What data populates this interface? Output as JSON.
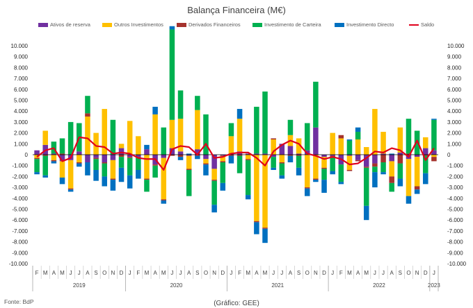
{
  "chart_data": {
    "type": "bar",
    "subtype": "stacked-bar-with-line",
    "title": "Balança Financeira (M€)",
    "source": "Fonte: BdP",
    "credit": "(Gráfico: GEE)",
    "ylim": [
      -10000,
      10000
    ],
    "ytick_step": 1000,
    "ytick_labels": [
      "-10.000",
      "-9.000",
      "-8.000",
      "-7.000",
      "-6.000",
      "-5.000",
      "-4.000",
      "-3.000",
      "-2.000",
      "-1.000",
      "0",
      "1.000",
      "2.000",
      "3.000",
      "4.000",
      "5.000",
      "6.000",
      "7.000",
      "8.000",
      "9.000",
      "10.000"
    ],
    "month_labels": [
      "F",
      "M",
      "A",
      "M",
      "J",
      "J",
      "A",
      "S",
      "O",
      "N",
      "D",
      "J",
      "F",
      "M",
      "A",
      "M",
      "J",
      "J",
      "A",
      "S",
      "O",
      "N",
      "D",
      "J",
      "F",
      "M",
      "A",
      "M",
      "J",
      "J",
      "A",
      "S",
      "O",
      "N",
      "D",
      "J",
      "F",
      "M",
      "A",
      "M",
      "J",
      "J",
      "A",
      "S",
      "O",
      "N",
      "D",
      "J"
    ],
    "years": [
      {
        "label": "2019",
        "months": 11
      },
      {
        "label": "2020",
        "months": 12
      },
      {
        "label": "2021",
        "months": 12
      },
      {
        "label": "2022",
        "months": 12
      },
      {
        "label": "2023",
        "months": 1
      }
    ],
    "series": [
      {
        "name": "Ativos de reserva",
        "color": "#7030A0",
        "type": "bar",
        "values": [
          400,
          900,
          100,
          -600,
          -500,
          300,
          -700,
          -300,
          -700,
          -500,
          600,
          -200,
          -200,
          500,
          -900,
          -300,
          600,
          300,
          -100,
          500,
          -400,
          -1300,
          -100,
          100,
          300,
          100,
          100,
          100,
          -200,
          1000,
          800,
          100,
          400,
          2500,
          -200,
          -100,
          -900,
          -100,
          -500,
          -1100,
          -800,
          100,
          -600,
          200,
          -400,
          -200,
          600,
          400
        ],
        "labels": []
      },
      {
        "name": "Outros Investimentos",
        "color": "#FFC000",
        "type": "bar",
        "values": [
          -300,
          1300,
          -500,
          -1500,
          -2600,
          -700,
          3500,
          2000,
          4200,
          -1700,
          400,
          3100,
          1700,
          -2200,
          3700,
          -3800,
          2600,
          3000,
          -1200,
          3600,
          -400,
          -1000,
          -500,
          1600,
          3000,
          -400,
          -6100,
          -6700,
          1400,
          -700,
          1000,
          1400,
          -3000,
          -2200,
          -1000,
          2000,
          1500,
          -1300,
          1400,
          700,
          4200,
          2000,
          -1400,
          2300,
          -3400,
          -2700,
          1000,
          -200
        ],
        "labels": []
      },
      {
        "name": "Derivados Financeiros",
        "color": "#A5322D",
        "type": "bar",
        "values": [
          -100,
          -100,
          -100,
          100,
          -100,
          -100,
          300,
          -100,
          -100,
          -100,
          -200,
          -100,
          -100,
          -100,
          -100,
          -100,
          -100,
          -200,
          -100,
          -100,
          -100,
          -100,
          -100,
          -100,
          -100,
          -100,
          -100,
          -100,
          100,
          -100,
          -100,
          -100,
          -100,
          -100,
          -100,
          -100,
          300,
          -100,
          -100,
          -100,
          -300,
          -700,
          -600,
          -800,
          100,
          -300,
          -100,
          -400
        ],
        "labels": []
      },
      {
        "name": "Investimento de Carteira",
        "color": "#00B050",
        "type": "bar",
        "values": [
          -1200,
          -1800,
          1100,
          1400,
          3000,
          2600,
          1600,
          -1000,
          -1200,
          3200,
          -1000,
          -1600,
          -1100,
          -1100,
          -1100,
          2500,
          8300,
          2600,
          -2400,
          1300,
          3700,
          -2200,
          -1900,
          1200,
          -1600,
          -3200,
          4300,
          5700,
          -1000,
          -1100,
          1400,
          -1100,
          2500,
          4200,
          -1000,
          -1300,
          -1600,
          1300,
          700,
          -3500,
          -500,
          -900,
          -800,
          -1400,
          3200,
          2200,
          -1600,
          2800
        ],
        "labels": []
      },
      {
        "name": "Investimento Directo",
        "color": "#0070C0",
        "type": "bar",
        "values": [
          -200,
          -200,
          -200,
          -600,
          -200,
          -300,
          -1200,
          -1000,
          -900,
          -1000,
          -1300,
          -1200,
          -800,
          400,
          700,
          -300,
          300,
          -300,
          100,
          -300,
          -1000,
          -700,
          -700,
          -700,
          900,
          -400,
          -1100,
          -1300,
          -200,
          -300,
          -600,
          -700,
          -700,
          -200,
          -1200,
          -300,
          -200,
          100,
          400,
          -1300,
          -1400,
          -200,
          100,
          -700,
          -700,
          -400,
          -1000,
          100
        ],
        "labels": []
      },
      {
        "name": "Saldo",
        "color": "#E0001B",
        "type": "line",
        "values": [
          -200,
          400,
          600,
          -600,
          -300,
          1600,
          1500,
          800,
          700,
          100,
          200,
          100,
          -300,
          -400,
          -400,
          -1400,
          500,
          800,
          700,
          0,
          1000,
          -300,
          -200,
          100,
          200,
          200,
          -300,
          -1000,
          300,
          900,
          1300,
          1000,
          100,
          -100,
          -400,
          -200,
          -400,
          -900,
          -800,
          -300,
          300,
          200,
          600,
          400,
          -200,
          1300,
          -500,
          600
        ]
      }
    ]
  }
}
